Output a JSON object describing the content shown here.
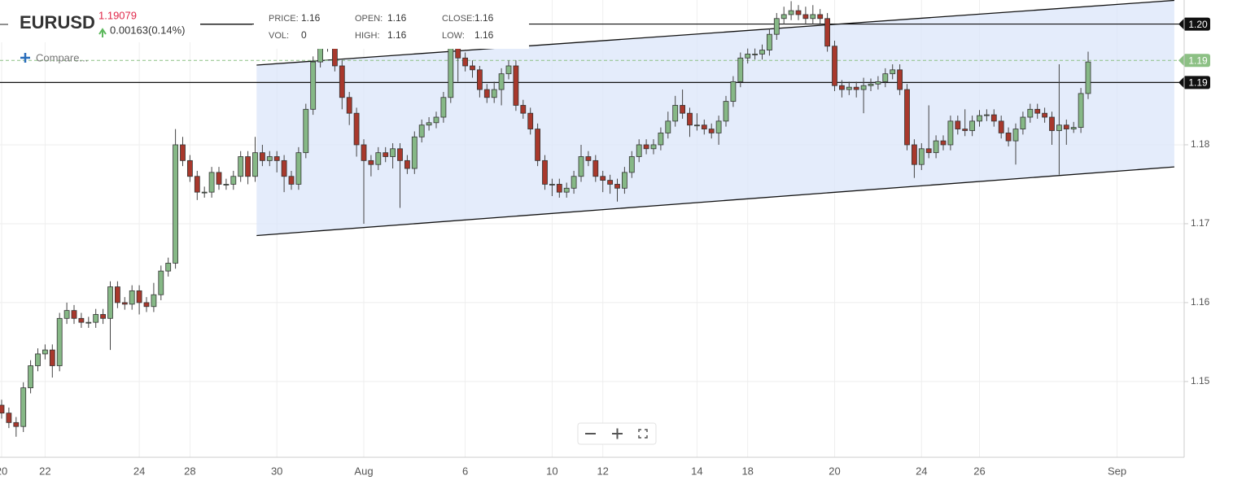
{
  "header": {
    "symbol": "EURUSD",
    "last_price": "1.19079",
    "change": "0.00163(0.14%)",
    "compare": "Compare...",
    "fields": [
      {
        "label": "PRICE:",
        "value": "1.16"
      },
      {
        "label": "VOL:",
        "value": "0"
      },
      {
        "label": "OPEN:",
        "value": "1.16"
      },
      {
        "label": "HIGH:",
        "value": "1.16"
      },
      {
        "label": "CLOSE:",
        "value": "1.16"
      },
      {
        "label": "LOW:",
        "value": "1.16"
      }
    ]
  },
  "chart_data": {
    "type": "candlestick",
    "up_color": "#86b886",
    "down_color": "#a8382c",
    "grid": true,
    "ylim": [
      1.1404,
      1.19835
    ],
    "yticks": [
      1.15,
      1.16,
      1.17,
      1.18
    ],
    "categories": [
      "20",
      null,
      null,
      null,
      null,
      null,
      "22",
      null,
      null,
      null,
      null,
      null,
      null,
      null,
      null,
      null,
      null,
      null,
      null,
      "24",
      null,
      null,
      null,
      null,
      null,
      null,
      "28",
      null,
      null,
      null,
      null,
      null,
      null,
      null,
      null,
      null,
      null,
      null,
      "30",
      null,
      null,
      null,
      null,
      null,
      null,
      null,
      null,
      null,
      null,
      null,
      "Aug",
      null,
      null,
      null,
      null,
      null,
      null,
      null,
      null,
      null,
      null,
      null,
      null,
      null,
      "6",
      null,
      null,
      null,
      null,
      null,
      null,
      null,
      null,
      null,
      null,
      null,
      "10",
      null,
      null,
      null,
      null,
      null,
      null,
      "12",
      null,
      null,
      null,
      null,
      null,
      null,
      null,
      null,
      null,
      null,
      null,
      null,
      "14",
      null,
      null,
      null,
      null,
      null,
      null,
      "18",
      null,
      null,
      null,
      null,
      null,
      null,
      null,
      null,
      null,
      null,
      null,
      "20",
      null,
      null,
      null,
      null,
      null,
      null,
      null,
      null,
      null,
      null,
      null,
      "24",
      null,
      null,
      null,
      null,
      null,
      null,
      null,
      "26",
      null,
      null,
      null,
      null,
      null,
      null,
      null,
      null,
      null,
      null,
      null,
      null,
      null,
      null,
      null,
      null,
      null,
      null,
      "Sep",
      null
    ],
    "open": [
      1.147,
      1.146,
      1.1448,
      1.1443,
      1.1492,
      1.152,
      1.1535,
      1.154,
      1.152,
      1.158,
      1.159,
      1.158,
      1.1575,
      1.1575,
      1.1585,
      1.158,
      1.162,
      1.16,
      1.1598,
      1.1615,
      1.16,
      1.1595,
      1.161,
      1.164,
      1.165,
      1.18,
      1.178,
      1.176,
      1.174,
      1.174,
      1.1765,
      1.175,
      1.175,
      1.176,
      1.1785,
      1.176,
      1.179,
      1.178,
      1.1785,
      1.178,
      1.176,
      1.175,
      1.179,
      1.1845,
      1.1905,
      1.1925,
      1.1925,
      1.19,
      1.186,
      1.184,
      1.18,
      1.178,
      1.1775,
      1.179,
      1.1785,
      1.1795,
      1.178,
      1.177,
      1.181,
      1.1825,
      1.1828,
      1.1835,
      1.186,
      1.193,
      1.191,
      1.19,
      1.1895,
      1.187,
      1.186,
      1.187,
      1.189,
      1.19,
      1.185,
      1.184,
      1.182,
      1.178,
      1.175,
      1.175,
      1.174,
      1.1745,
      1.176,
      1.1785,
      1.178,
      1.176,
      1.1755,
      1.175,
      1.1745,
      1.1765,
      1.1785,
      1.18,
      1.1795,
      1.18,
      1.1815,
      1.183,
      1.185,
      1.184,
      1.1825,
      1.1825,
      1.182,
      1.1815,
      1.183,
      1.1855,
      1.188,
      1.191,
      1.1915,
      1.1915,
      1.192,
      1.194,
      1.196,
      1.1965,
      1.197,
      1.1965,
      1.196,
      1.1965,
      1.196,
      1.1925,
      1.1875,
      1.187,
      1.1873,
      1.187,
      1.1875,
      1.1877,
      1.188,
      1.189,
      1.1895,
      1.187,
      1.18,
      1.1775,
      1.1795,
      1.179,
      1.1805,
      1.18,
      1.183,
      1.182,
      1.1818,
      1.183,
      1.1837,
      1.1838,
      1.183,
      1.1815,
      1.1805,
      1.182,
      1.1835,
      1.1845,
      1.184,
      1.1835,
      1.1818,
      1.1825,
      1.182,
      1.1822,
      1.1865,
      null,
      null,
      null,
      null,
      null
    ],
    "high": [
      1.1477,
      1.1467,
      1.1455,
      1.1499,
      1.1527,
      1.1542,
      1.1547,
      1.1547,
      1.1587,
      1.16,
      1.1597,
      1.1587,
      1.1582,
      1.1592,
      1.1592,
      1.1627,
      1.1627,
      1.1607,
      1.1622,
      1.1622,
      1.1607,
      1.1625,
      1.1647,
      1.1657,
      1.182,
      1.181,
      1.1787,
      1.1767,
      1.1747,
      1.1772,
      1.1772,
      1.1757,
      1.1767,
      1.1792,
      1.1792,
      1.181,
      1.18,
      1.1792,
      1.1792,
      1.1787,
      1.1767,
      1.1797,
      1.1852,
      1.1912,
      1.1935,
      1.1935,
      1.1932,
      1.1907,
      1.1867,
      1.1847,
      1.1807,
      1.1787,
      1.1797,
      1.1797,
      1.1802,
      1.1802,
      1.1787,
      1.1817,
      1.1832,
      1.1835,
      1.1842,
      1.1867,
      1.1937,
      1.1937,
      1.1917,
      1.1907,
      1.19,
      1.1877,
      1.188,
      1.1897,
      1.1907,
      1.1907,
      1.1857,
      1.1847,
      1.1827,
      1.1787,
      1.1757,
      1.1757,
      1.1752,
      1.1767,
      1.18,
      1.1792,
      1.1787,
      1.1767,
      1.1762,
      1.1757,
      1.1772,
      1.1792,
      1.1807,
      1.1807,
      1.1807,
      1.1822,
      1.1842,
      1.1862,
      1.187,
      1.1847,
      1.184,
      1.1832,
      1.1827,
      1.1837,
      1.1862,
      1.1887,
      1.1917,
      1.1922,
      1.1922,
      1.1927,
      1.1947,
      1.1967,
      1.1975,
      1.1982,
      1.1977,
      1.1975,
      1.1977,
      1.1972,
      1.1967,
      1.1932,
      1.1882,
      1.188,
      1.188,
      1.1885,
      1.1884,
      1.1887,
      1.1897,
      1.1902,
      1.1902,
      1.1877,
      1.1807,
      1.1802,
      1.185,
      1.1812,
      1.1812,
      1.1837,
      1.1837,
      1.1845,
      1.1837,
      1.1844,
      1.1845,
      1.1845,
      1.1837,
      1.1822,
      1.1827,
      1.1842,
      1.1852,
      1.1852,
      1.1847,
      1.1842,
      1.1902,
      1.1832,
      1.1829,
      1.1872,
      1.1918,
      null,
      null,
      null,
      null,
      null
    ],
    "low": [
      1.1453,
      1.1441,
      1.143,
      1.1436,
      1.1485,
      1.1513,
      1.1528,
      1.1505,
      1.1513,
      1.1573,
      1.1573,
      1.1568,
      1.1568,
      1.1568,
      1.1573,
      1.154,
      1.1593,
      1.1591,
      1.1591,
      1.1585,
      1.1588,
      1.1588,
      1.1603,
      1.1633,
      1.1643,
      1.1773,
      1.1753,
      1.173,
      1.1733,
      1.1733,
      1.1743,
      1.1743,
      1.1743,
      1.1753,
      1.175,
      1.1753,
      1.1773,
      1.1773,
      1.1765,
      1.174,
      1.1743,
      1.1743,
      1.1783,
      1.1838,
      1.1898,
      1.1918,
      1.1893,
      1.1845,
      1.1825,
      1.1785,
      1.17,
      1.176,
      1.1768,
      1.1778,
      1.177,
      1.172,
      1.1763,
      1.1763,
      1.1803,
      1.1818,
      1.1821,
      1.1828,
      1.1853,
      1.188,
      1.1893,
      1.1885,
      1.186,
      1.1853,
      1.1853,
      1.185,
      1.1883,
      1.1843,
      1.1833,
      1.1813,
      1.1773,
      1.1743,
      1.1735,
      1.1733,
      1.1733,
      1.1738,
      1.1753,
      1.1773,
      1.1753,
      1.174,
      1.1738,
      1.1728,
      1.1738,
      1.1758,
      1.1778,
      1.1788,
      1.1788,
      1.1793,
      1.1808,
      1.1823,
      1.1833,
      1.181,
      1.1818,
      1.1813,
      1.1808,
      1.18,
      1.1823,
      1.1848,
      1.1873,
      1.1903,
      1.1908,
      1.1908,
      1.1913,
      1.1933,
      1.1953,
      1.1958,
      1.1958,
      1.1953,
      1.1953,
      1.1953,
      1.1918,
      1.1868,
      1.186,
      1.1863,
      1.186,
      1.184,
      1.1868,
      1.187,
      1.1873,
      1.1883,
      1.1863,
      1.1793,
      1.1758,
      1.1768,
      1.1783,
      1.1783,
      1.1793,
      1.1793,
      1.1813,
      1.1811,
      1.1811,
      1.1823,
      1.183,
      1.1823,
      1.1808,
      1.1798,
      1.1775,
      1.1813,
      1.1828,
      1.1833,
      1.1828,
      1.18,
      1.1762,
      1.18,
      1.1815,
      1.1815,
      1.1858,
      null,
      null,
      null,
      null,
      null
    ],
    "close": [
      1.146,
      1.1448,
      1.1443,
      1.1492,
      1.152,
      1.1535,
      1.154,
      1.152,
      1.158,
      1.159,
      1.158,
      1.1575,
      1.1575,
      1.1585,
      1.158,
      1.162,
      1.16,
      1.1598,
      1.1615,
      1.16,
      1.1595,
      1.161,
      1.164,
      1.165,
      1.18,
      1.178,
      1.176,
      1.174,
      1.174,
      1.1765,
      1.175,
      1.175,
      1.176,
      1.1785,
      1.176,
      1.179,
      1.178,
      1.1785,
      1.178,
      1.176,
      1.175,
      1.179,
      1.1845,
      1.1905,
      1.1925,
      1.1925,
      1.19,
      1.186,
      1.184,
      1.18,
      1.178,
      1.1775,
      1.179,
      1.1785,
      1.1795,
      1.178,
      1.177,
      1.181,
      1.1825,
      1.1828,
      1.1835,
      1.186,
      1.193,
      1.191,
      1.19,
      1.1895,
      1.187,
      1.186,
      1.187,
      1.189,
      1.19,
      1.185,
      1.184,
      1.182,
      1.178,
      1.175,
      1.175,
      1.174,
      1.1745,
      1.176,
      1.1785,
      1.178,
      1.176,
      1.1755,
      1.175,
      1.1745,
      1.1765,
      1.1785,
      1.18,
      1.1795,
      1.18,
      1.1815,
      1.183,
      1.185,
      1.184,
      1.1825,
      1.1825,
      1.182,
      1.1815,
      1.183,
      1.1855,
      1.188,
      1.191,
      1.1915,
      1.1915,
      1.192,
      1.194,
      1.196,
      1.1965,
      1.197,
      1.1965,
      1.196,
      1.1965,
      1.196,
      1.1925,
      1.1875,
      1.187,
      1.1873,
      1.187,
      1.1875,
      1.1877,
      1.188,
      1.189,
      1.1895,
      1.187,
      1.18,
      1.1775,
      1.1795,
      1.179,
      1.1805,
      1.18,
      1.183,
      1.182,
      1.1818,
      1.183,
      1.1837,
      1.1838,
      1.183,
      1.1815,
      1.1805,
      1.182,
      1.1835,
      1.1845,
      1.184,
      1.1835,
      1.1818,
      1.1825,
      1.182,
      1.1822,
      1.1865,
      1.1905,
      null,
      null,
      null,
      null,
      null
    ],
    "channel": {
      "x": [
        35.2,
        161.9
      ],
      "upper": [
        1.1901,
        1.1983
      ],
      "lower": [
        1.1685,
        1.1772
      ],
      "color": "#dbe5f9"
    },
    "price_lines": [
      {
        "value": 1.1953,
        "label": "1.20"
      },
      {
        "value": 1.1879,
        "label": "1.19"
      }
    ],
    "last_line": {
      "value": 1.1907,
      "label": "1.19",
      "color": "#8cc084"
    }
  }
}
